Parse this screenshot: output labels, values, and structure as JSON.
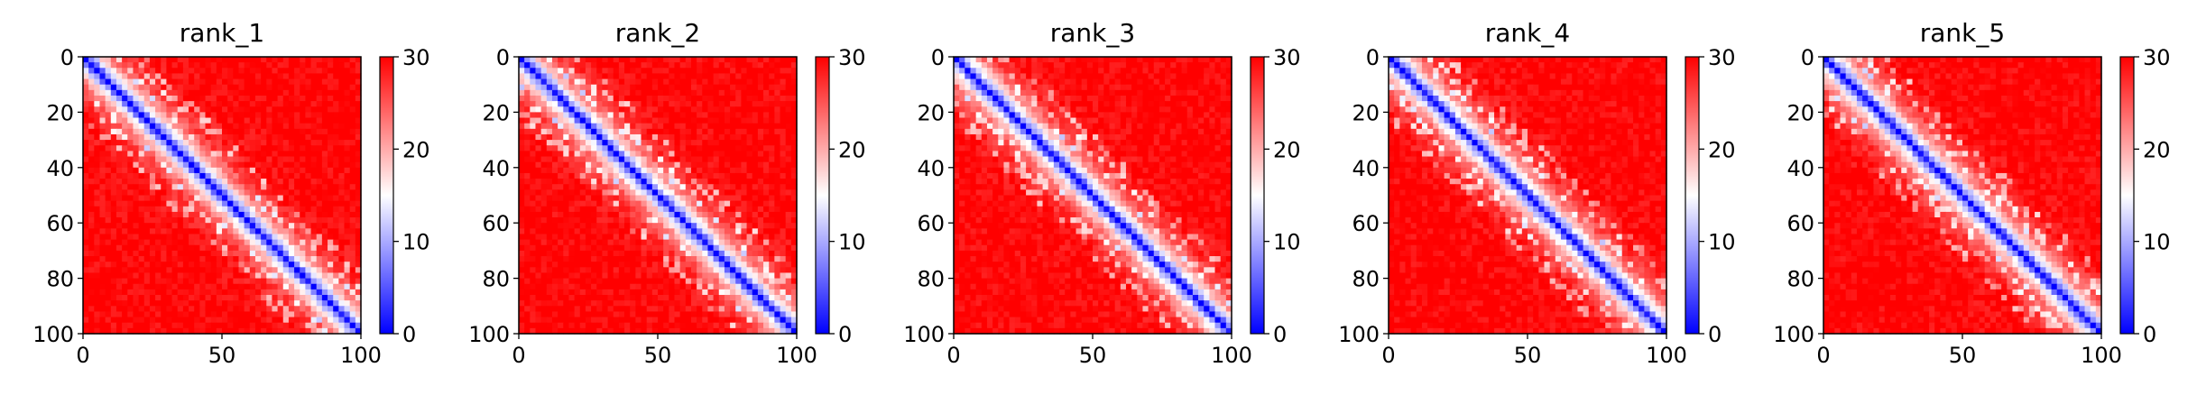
{
  "chart_data": [
    {
      "type": "heatmap",
      "title": "rank_1",
      "xticks": [
        0,
        50,
        100
      ],
      "yticks": [
        0,
        20,
        40,
        60,
        80,
        100
      ],
      "xlim": [
        0,
        100
      ],
      "ylim": [
        100,
        0
      ],
      "colorbar": {
        "min": 0,
        "max": 30,
        "ticks": [
          0,
          10,
          20,
          30
        ],
        "colors": [
          "#0000ff",
          "#ffffff",
          "#ff0000"
        ]
      }
    },
    {
      "type": "heatmap",
      "title": "rank_2",
      "xticks": [
        0,
        50,
        100
      ],
      "yticks": [
        0,
        20,
        40,
        60,
        80,
        100
      ],
      "xlim": [
        0,
        100
      ],
      "ylim": [
        100,
        0
      ],
      "colorbar": {
        "min": 0,
        "max": 30,
        "ticks": [
          0,
          10,
          20,
          30
        ],
        "colors": [
          "#0000ff",
          "#ffffff",
          "#ff0000"
        ]
      }
    },
    {
      "type": "heatmap",
      "title": "rank_3",
      "xticks": [
        0,
        50,
        100
      ],
      "yticks": [
        0,
        20,
        40,
        60,
        80,
        100
      ],
      "xlim": [
        0,
        100
      ],
      "ylim": [
        100,
        0
      ],
      "colorbar": {
        "min": 0,
        "max": 30,
        "ticks": [
          0,
          10,
          20,
          30
        ],
        "colors": [
          "#0000ff",
          "#ffffff",
          "#ff0000"
        ]
      }
    },
    {
      "type": "heatmap",
      "title": "rank_4",
      "xticks": [
        0,
        50,
        100
      ],
      "yticks": [
        0,
        20,
        40,
        60,
        80,
        100
      ],
      "xlim": [
        0,
        100
      ],
      "ylim": [
        100,
        0
      ],
      "colorbar": {
        "min": 0,
        "max": 30,
        "ticks": [
          0,
          10,
          20,
          30
        ],
        "colors": [
          "#0000ff",
          "#ffffff",
          "#ff0000"
        ]
      }
    },
    {
      "type": "heatmap",
      "title": "rank_5",
      "xticks": [
        0,
        50,
        100
      ],
      "yticks": [
        0,
        20,
        40,
        60,
        80,
        100
      ],
      "xlim": [
        0,
        100
      ],
      "ylim": [
        100,
        0
      ],
      "colorbar": {
        "min": 0,
        "max": 30,
        "ticks": [
          0,
          10,
          20,
          30
        ],
        "colors": [
          "#0000ff",
          "#ffffff",
          "#ff0000"
        ]
      }
    }
  ]
}
